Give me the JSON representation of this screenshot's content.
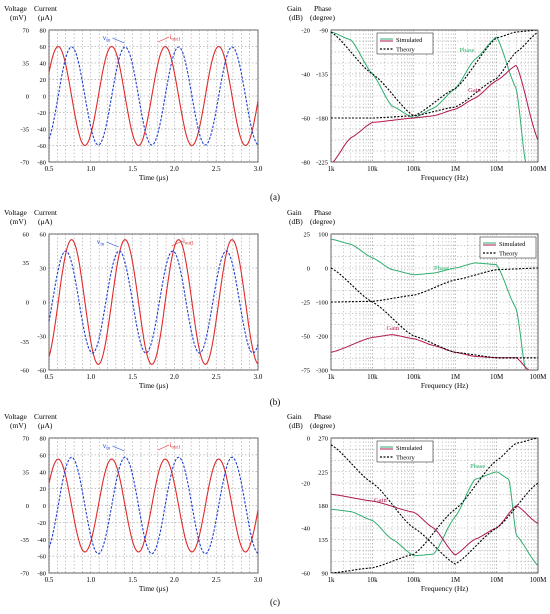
{
  "panels": [
    {
      "label": "(a)",
      "time_chart": {
        "ylabel_left": [
          "Voltage",
          "(mV)"
        ],
        "ylabel_right": [
          "Current",
          "(μA)"
        ],
        "left_ticks": [
          "70",
          "35",
          "0",
          "-35",
          "-70"
        ],
        "right_ticks": [
          "80",
          "60",
          "40",
          "20",
          "0",
          "-20",
          "-40",
          "-60",
          "-80"
        ],
        "x_ticks": [
          "0.5",
          "1.0",
          "1.5",
          "2.0",
          "2.5",
          "3.0"
        ],
        "xlabel": "Time (μs)",
        "vin_label": "vin",
        "iout_label": "iout1"
      },
      "freq_chart": {
        "ylabel_left": [
          "Gain",
          "(dB)"
        ],
        "ylabel_right": [
          "Phase",
          "(degree)"
        ],
        "left_ticks": [
          "-20",
          "-40",
          "-60",
          "-80"
        ],
        "right_ticks": [
          "-90",
          "-135",
          "-180",
          "-225"
        ],
        "x_ticks": [
          "1k",
          "10k",
          "100k",
          "1M",
          "10M",
          "100M"
        ],
        "xlabel": "Frequency  (Hz)",
        "legend": [
          "Simulated",
          "Theory"
        ],
        "phase_label": "Phase",
        "gain_label": "Gain"
      }
    },
    {
      "label": "(b)",
      "time_chart": {
        "ylabel_left": [
          "Voltage",
          "(mV)"
        ],
        "ylabel_right": [
          "Current",
          "(μA)"
        ],
        "left_ticks": [
          "60",
          "35",
          "0",
          "-35",
          "-60"
        ],
        "right_ticks": [
          "60",
          "30",
          "0",
          "-30",
          "-60"
        ],
        "x_ticks": [
          "0.5",
          "1.0",
          "1.5",
          "2.0",
          "2.5",
          "3.0"
        ],
        "xlabel": "Time (μs)",
        "vin_label": "vin",
        "iout_label": "iout1"
      },
      "freq_chart": {
        "ylabel_left": [
          "Gain",
          "(dB)"
        ],
        "ylabel_right": [
          "Phase",
          "(degree)"
        ],
        "left_ticks": [
          "25",
          "0",
          "-25",
          "-50",
          "-75"
        ],
        "right_ticks": [
          "100",
          "0",
          "-100",
          "-200",
          "-300"
        ],
        "x_ticks": [
          "1k",
          "10k",
          "100k",
          "1M",
          "10M",
          "100M"
        ],
        "xlabel": "Frequency  (Hz)",
        "legend": [
          "Simulated",
          "Theory"
        ],
        "phase_label": "Phase",
        "gain_label": "Gain"
      }
    },
    {
      "label": "(c)",
      "time_chart": {
        "ylabel_left": [
          "Voltage",
          "(mV)"
        ],
        "ylabel_right": [
          "Current",
          "(μA)"
        ],
        "left_ticks": [
          "70",
          "35",
          "0",
          "-35",
          "-70"
        ],
        "right_ticks": [
          "80",
          "60",
          "40",
          "20",
          "0",
          "-20",
          "-40",
          "-60",
          "-80"
        ],
        "x_ticks": [
          "0.5",
          "1.0",
          "1.5",
          "2.0",
          "2.5",
          "3.0"
        ],
        "xlabel": "Time (μs)",
        "vin_label": "vin",
        "iout_label": "iout1"
      },
      "freq_chart": {
        "ylabel_left": [
          "Gain",
          "(dB)"
        ],
        "ylabel_right": [
          "Phase",
          "(degree)"
        ],
        "left_ticks": [
          "0",
          "-20",
          "-40",
          "-60"
        ],
        "right_ticks": [
          "270",
          "225",
          "180",
          "135",
          "90"
        ],
        "x_ticks": [
          "1k",
          "10k",
          "100k",
          "1M",
          "10M",
          "100M"
        ],
        "xlabel": "Frequency  (Hz)",
        "legend": [
          "Simulated",
          "Theory"
        ],
        "phase_label": "Phase",
        "gain_label": "Gain"
      }
    }
  ],
  "colors": {
    "vin": "#1f3fd6",
    "iout": "#e02a2a",
    "phase": "#2fae6e",
    "gain": "#b0174f",
    "theory": "#000000",
    "grid": "#888888"
  },
  "chart_data": [
    {
      "type": "line",
      "panel": "(a)",
      "xlabel": "Time (μs)",
      "xlim": [
        0.5,
        3.0
      ],
      "series": [
        {
          "name": "vin",
          "unit": "mV",
          "amplitude": 52,
          "period_us": 0.64,
          "peak_time_us": 0.77
        },
        {
          "name": "iout1",
          "unit": "μA",
          "amplitude": 60,
          "period_us": 0.64,
          "peak_time_us": 0.61
        }
      ]
    },
    {
      "type": "line",
      "panel": "(a)",
      "xlabel": "Frequency  (Hz)",
      "xscale": "log",
      "xlim": [
        1000,
        100000000
      ],
      "gain_ylim": [
        -80,
        -20
      ],
      "phase_ylim": [
        -225,
        -90
      ],
      "series": [
        {
          "name": "Phase (Simulated)",
          "axis": "phase",
          "x": [
            1000,
            3000,
            10000,
            30000,
            100000,
            300000,
            1000000,
            3000000,
            10000000,
            30000000,
            50000000
          ],
          "y": [
            -92,
            -100,
            -135,
            -168,
            -180,
            -170,
            -150,
            -120,
            -97,
            -150,
            -225
          ]
        },
        {
          "name": "Phase (Theory)",
          "axis": "phase",
          "x": [
            1000,
            10000,
            100000,
            1000000,
            10000000,
            30000000,
            100000000
          ],
          "y": [
            -92,
            -135,
            -178,
            -150,
            -98,
            -92,
            -90
          ]
        },
        {
          "name": "Gain (Simulated)",
          "axis": "gain",
          "x": [
            1000,
            3000,
            10000,
            100000,
            300000,
            1000000,
            3000000,
            10000000,
            30000000,
            100000000
          ],
          "y": [
            -81,
            -69,
            -62,
            -60,
            -59,
            -56,
            -51,
            -43,
            -36,
            -70
          ]
        },
        {
          "name": "Gain (Theory)",
          "axis": "gain",
          "x": [
            1000,
            10000,
            100000,
            1000000,
            10000000,
            30000000,
            100000000
          ],
          "y": [
            -60,
            -60,
            -59,
            -55,
            -42,
            -30,
            -21
          ]
        }
      ]
    },
    {
      "type": "line",
      "panel": "(b)",
      "xlabel": "Time (μs)",
      "xlim": [
        0.5,
        3.0
      ],
      "series": [
        {
          "name": "vin",
          "unit": "mV",
          "amplitude": 45,
          "period_us": 0.64,
          "peak_time_us": 0.7
        },
        {
          "name": "iout1",
          "unit": "μA",
          "amplitude": 55,
          "period_us": 0.64,
          "peak_time_us": 0.77
        }
      ]
    },
    {
      "type": "line",
      "panel": "(b)",
      "xlabel": "Frequency  (Hz)",
      "xscale": "log",
      "xlim": [
        1000,
        100000000
      ],
      "gain_ylim": [
        -75,
        25
      ],
      "phase_ylim": [
        -300,
        100
      ],
      "series": [
        {
          "name": "Phase (Simulated)",
          "axis": "phase",
          "x": [
            1000,
            3000,
            10000,
            30000,
            100000,
            300000,
            1000000,
            3000000,
            10000000,
            30000000,
            50000000
          ],
          "y": [
            85,
            70,
            30,
            -5,
            -20,
            -15,
            0,
            15,
            10,
            -120,
            -300
          ]
        },
        {
          "name": "Phase (Theory)",
          "axis": "phase",
          "x": [
            1000,
            10000,
            100000,
            1000000,
            10000000,
            100000000
          ],
          "y": [
            -100,
            -98,
            -80,
            -35,
            -5,
            0
          ]
        },
        {
          "name": "Gain (Simulated)",
          "axis": "gain",
          "x": [
            1000,
            10000,
            30000,
            100000,
            300000,
            1000000,
            3000000,
            10000000,
            30000000,
            60000000
          ],
          "y": [
            -62,
            -51,
            -49,
            -52,
            -57,
            -62,
            -65,
            -66,
            -66,
            -75
          ]
        },
        {
          "name": "Gain (Theory)",
          "axis": "gain",
          "x": [
            1000,
            10000,
            100000,
            1000000,
            10000000,
            100000000
          ],
          "y": [
            0,
            -25,
            -50,
            -62,
            -66,
            -66
          ]
        }
      ]
    },
    {
      "type": "line",
      "panel": "(c)",
      "xlabel": "Time (μs)",
      "xlim": [
        0.5,
        3.0
      ],
      "series": [
        {
          "name": "vin",
          "unit": "mV",
          "amplitude": 50,
          "period_us": 0.64,
          "peak_time_us": 0.77
        },
        {
          "name": "iout1",
          "unit": "μA",
          "amplitude": 55,
          "period_us": 0.64,
          "peak_time_us": 0.61
        }
      ]
    },
    {
      "type": "line",
      "panel": "(c)",
      "xlabel": "Frequency  (Hz)",
      "xscale": "log",
      "xlim": [
        1000,
        100000000
      ],
      "gain_ylim": [
        -60,
        0
      ],
      "phase_ylim": [
        90,
        270
      ],
      "series": [
        {
          "name": "Phase (Simulated)",
          "axis": "phase",
          "x": [
            1000,
            3000,
            10000,
            30000,
            100000,
            300000,
            1000000,
            3000000,
            10000000,
            20000000,
            30000000,
            100000000
          ],
          "y": [
            175,
            172,
            160,
            135,
            113,
            115,
            165,
            215,
            225,
            215,
            140,
            100
          ]
        },
        {
          "name": "Phase (Theory)",
          "axis": "phase",
          "x": [
            1000,
            10000,
            100000,
            1000000,
            10000000,
            30000000,
            100000000
          ],
          "y": [
            90,
            97,
            115,
            175,
            240,
            263,
            270
          ]
        },
        {
          "name": "Gain (Simulated)",
          "axis": "gain",
          "x": [
            1000,
            10000,
            100000,
            300000,
            1000000,
            3000000,
            10000000,
            30000000,
            100000000
          ],
          "y": [
            -25,
            -28,
            -33,
            -40,
            -52,
            -45,
            -40,
            -30,
            -38
          ]
        },
        {
          "name": "Gain (Theory)",
          "axis": "gain",
          "x": [
            1000,
            10000,
            100000,
            1000000,
            10000000,
            100000000
          ],
          "y": [
            -3,
            -20,
            -40,
            -56,
            -40,
            -20
          ]
        }
      ]
    }
  ]
}
